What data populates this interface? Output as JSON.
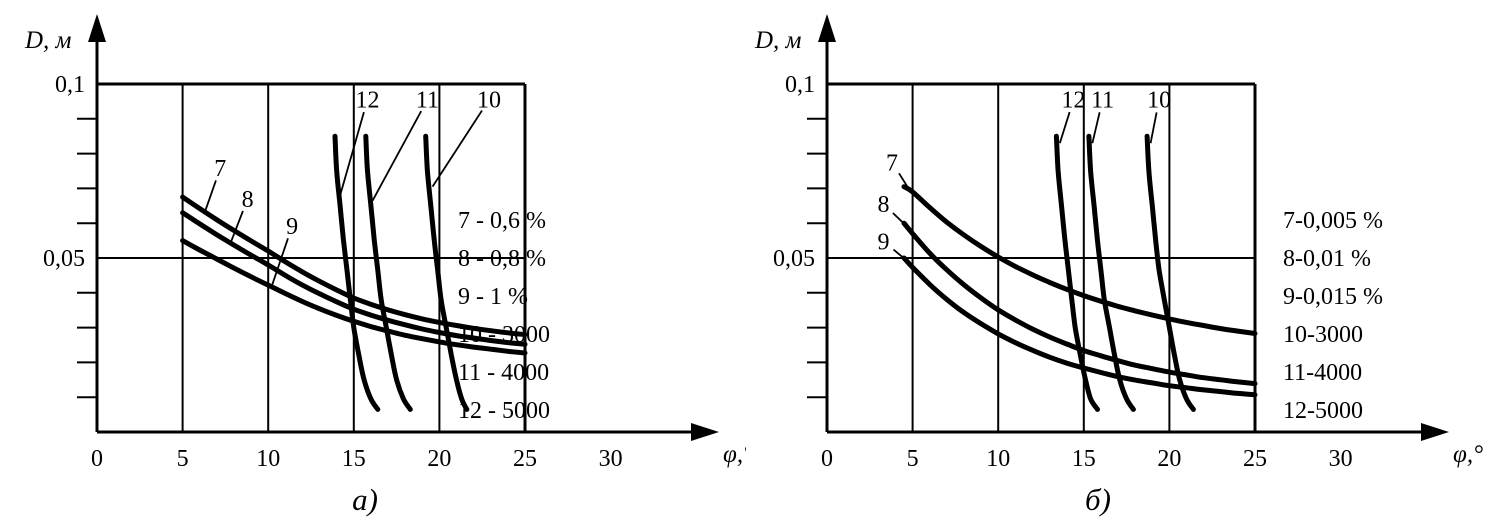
{
  "figure": {
    "background": "#ffffff",
    "ink": "#000000"
  },
  "chart_data": [
    {
      "id": "a",
      "type": "line",
      "caption": "а)",
      "xlabel": "φ,°",
      "ylabel": "D, м",
      "xlim": [
        0,
        30
      ],
      "ylim": [
        0,
        0.1
      ],
      "grid_x": [
        5,
        10,
        15,
        20
      ],
      "grid_y": [
        0.05
      ],
      "frame": {
        "x_max": 25,
        "y_max": 0.1
      },
      "y_minor_tick_step": 0.01,
      "x_ticks": [
        {
          "v": 0,
          "label": "0"
        },
        {
          "v": 5,
          "label": "5"
        },
        {
          "v": 10,
          "label": "10"
        },
        {
          "v": 15,
          "label": "15"
        },
        {
          "v": 20,
          "label": "20"
        },
        {
          "v": 25,
          "label": "25"
        },
        {
          "v": 30,
          "label": "30"
        }
      ],
      "y_ticks_labeled": [
        {
          "v": 0.1,
          "label": "0,1"
        },
        {
          "v": 0.05,
          "label": "0,05"
        }
      ],
      "legend": [
        "7 - 0,6 %",
        "8 - 0,8 %",
        "9 - 1 %",
        "10 - 3000",
        "11 - 4000",
        "12 - 5000"
      ],
      "legend_position": "right",
      "series": [
        {
          "name": "7",
          "points": [
            [
              5,
              0.0675
            ],
            [
              6,
              0.0642
            ],
            [
              7,
              0.061
            ],
            [
              8,
              0.0579
            ],
            [
              9,
              0.0549
            ],
            [
              10,
              0.052
            ],
            [
              11,
              0.0489
            ],
            [
              12,
              0.046
            ],
            [
              13,
              0.0433
            ],
            [
              14,
              0.0408
            ],
            [
              15,
              0.0385
            ],
            [
              16,
              0.0367
            ],
            [
              17,
              0.0351
            ],
            [
              18,
              0.0337
            ],
            [
              19,
              0.0325
            ],
            [
              20,
              0.0315
            ],
            [
              21,
              0.0306
            ],
            [
              22,
              0.0298
            ],
            [
              23,
              0.0291
            ],
            [
              24,
              0.0285
            ],
            [
              25,
              0.028
            ]
          ]
        },
        {
          "name": "8",
          "points": [
            [
              5,
              0.063
            ],
            [
              6,
              0.0598
            ],
            [
              7,
              0.0567
            ],
            [
              8,
              0.0537
            ],
            [
              9,
              0.0508
            ],
            [
              10,
              0.048
            ],
            [
              11,
              0.045
            ],
            [
              12,
              0.0422
            ],
            [
              13,
              0.0397
            ],
            [
              14,
              0.0374
            ],
            [
              15,
              0.0353
            ],
            [
              16,
              0.0336
            ],
            [
              17,
              0.0321
            ],
            [
              18,
              0.0308
            ],
            [
              19,
              0.0296
            ],
            [
              20,
              0.0286
            ],
            [
              21,
              0.0277
            ],
            [
              22,
              0.027
            ],
            [
              23,
              0.0263
            ],
            [
              24,
              0.0257
            ],
            [
              25,
              0.0252
            ]
          ]
        },
        {
          "name": "9",
          "points": [
            [
              5,
              0.055
            ],
            [
              6,
              0.0523
            ],
            [
              7,
              0.0497
            ],
            [
              8,
              0.0471
            ],
            [
              9,
              0.0446
            ],
            [
              10,
              0.0422
            ],
            [
              11,
              0.0398
            ],
            [
              12,
              0.0375
            ],
            [
              13,
              0.0354
            ],
            [
              14,
              0.0335
            ],
            [
              15,
              0.0318
            ],
            [
              16,
              0.0303
            ],
            [
              17,
              0.029
            ],
            [
              18,
              0.0278
            ],
            [
              19,
              0.0268
            ],
            [
              20,
              0.0259
            ],
            [
              21,
              0.0251
            ],
            [
              22,
              0.0244
            ],
            [
              23,
              0.0238
            ],
            [
              24,
              0.0232
            ],
            [
              25,
              0.0227
            ]
          ]
        },
        {
          "name": "12",
          "points": [
            [
              13.9,
              0.085
            ],
            [
              14.0,
              0.075
            ],
            [
              14.2,
              0.065
            ],
            [
              14.4,
              0.055
            ],
            [
              14.6,
              0.0465
            ],
            [
              14.8,
              0.038
            ],
            [
              15.0,
              0.03
            ],
            [
              15.3,
              0.022
            ],
            [
              15.6,
              0.015
            ],
            [
              16.0,
              0.0095
            ],
            [
              16.4,
              0.0065
            ]
          ]
        },
        {
          "name": "11",
          "points": [
            [
              15.7,
              0.085
            ],
            [
              15.8,
              0.075
            ],
            [
              16.0,
              0.065
            ],
            [
              16.2,
              0.055
            ],
            [
              16.4,
              0.0465
            ],
            [
              16.6,
              0.038
            ],
            [
              16.9,
              0.03
            ],
            [
              17.2,
              0.022
            ],
            [
              17.5,
              0.015
            ],
            [
              17.9,
              0.0095
            ],
            [
              18.3,
              0.0065
            ]
          ]
        },
        {
          "name": "10",
          "points": [
            [
              19.2,
              0.085
            ],
            [
              19.3,
              0.075
            ],
            [
              19.5,
              0.065
            ],
            [
              19.7,
              0.055
            ],
            [
              19.9,
              0.0465
            ],
            [
              20.1,
              0.038
            ],
            [
              20.4,
              0.03
            ],
            [
              20.7,
              0.022
            ],
            [
              21.0,
              0.015
            ],
            [
              21.3,
              0.0095
            ],
            [
              21.6,
              0.0065
            ]
          ]
        }
      ],
      "labels": [
        {
          "text": "7",
          "x": 7.2,
          "y": 0.0758,
          "tx": 6.3,
          "ty": 0.0632
        },
        {
          "text": "8",
          "x": 8.8,
          "y": 0.067,
          "tx": 7.8,
          "ty": 0.0543
        },
        {
          "text": "9",
          "x": 11.4,
          "y": 0.0592,
          "tx": 10.2,
          "ty": 0.0418
        },
        {
          "text": "12",
          "x": 15.8,
          "y": 0.0955,
          "tx": 14.2,
          "ty": 0.068
        },
        {
          "text": "11",
          "x": 19.3,
          "y": 0.0955,
          "tx": 16.1,
          "ty": 0.0665
        },
        {
          "text": "10",
          "x": 22.9,
          "y": 0.0955,
          "tx": 19.6,
          "ty": 0.0705
        }
      ]
    },
    {
      "id": "b",
      "type": "line",
      "caption": "б)",
      "xlabel": "φ,°",
      "ylabel": "D, м",
      "xlim": [
        0,
        30
      ],
      "ylim": [
        0,
        0.1
      ],
      "grid_x": [
        5,
        10,
        15,
        20
      ],
      "grid_y": [
        0.05
      ],
      "frame": {
        "x_max": 25,
        "y_max": 0.1
      },
      "y_minor_tick_step": 0.01,
      "x_ticks": [
        {
          "v": 0,
          "label": "0"
        },
        {
          "v": 5,
          "label": "5"
        },
        {
          "v": 10,
          "label": "10"
        },
        {
          "v": 15,
          "label": "15"
        },
        {
          "v": 20,
          "label": "20"
        },
        {
          "v": 25,
          "label": "25"
        },
        {
          "v": 30,
          "label": "30"
        }
      ],
      "y_ticks_labeled": [
        {
          "v": 0.1,
          "label": "0,1"
        },
        {
          "v": 0.05,
          "label": "0,05"
        }
      ],
      "legend": [
        "7-0,005 %",
        "8-0,01 %",
        "9-0,015 %",
        "10-3000",
        "11-4000",
        "12-5000"
      ],
      "legend_position": "right",
      "series": [
        {
          "name": "7",
          "points": [
            [
              4.5,
              0.0705
            ],
            [
              5,
              0.069
            ],
            [
              6,
              0.0645
            ],
            [
              7,
              0.0603
            ],
            [
              8,
              0.0566
            ],
            [
              9,
              0.0533
            ],
            [
              10,
              0.0503
            ],
            [
              11,
              0.0476
            ],
            [
              12,
              0.0452
            ],
            [
              13,
              0.043
            ],
            [
              14,
              0.041
            ],
            [
              15,
              0.0392
            ],
            [
              16,
              0.0376
            ],
            [
              17,
              0.0361
            ],
            [
              18,
              0.0348
            ],
            [
              19,
              0.0336
            ],
            [
              20,
              0.0325
            ],
            [
              21,
              0.0315
            ],
            [
              22,
              0.0306
            ],
            [
              23,
              0.0297
            ],
            [
              24,
              0.029
            ],
            [
              25,
              0.0283
            ]
          ]
        },
        {
          "name": "8",
          "points": [
            [
              4.5,
              0.06
            ],
            [
              5,
              0.057
            ],
            [
              6,
              0.0514
            ],
            [
              7,
              0.0466
            ],
            [
              8,
              0.0423
            ],
            [
              9,
              0.0385
            ],
            [
              10,
              0.0351
            ],
            [
              11,
              0.0322
            ],
            [
              12,
              0.0296
            ],
            [
              13,
              0.0273
            ],
            [
              14,
              0.0253
            ],
            [
              15,
              0.0234
            ],
            [
              16,
              0.0219
            ],
            [
              17,
              0.0205
            ],
            [
              18,
              0.0192
            ],
            [
              19,
              0.0182
            ],
            [
              20,
              0.0172
            ],
            [
              21,
              0.0164
            ],
            [
              22,
              0.0156
            ],
            [
              23,
              0.015
            ],
            [
              24,
              0.0144
            ],
            [
              25,
              0.0139
            ]
          ]
        },
        {
          "name": "9",
          "points": [
            [
              4.5,
              0.05
            ],
            [
              5,
              0.0473
            ],
            [
              6,
              0.0424
            ],
            [
              7,
              0.0381
            ],
            [
              8,
              0.0343
            ],
            [
              9,
              0.0311
            ],
            [
              10,
              0.0282
            ],
            [
              11,
              0.0257
            ],
            [
              12,
              0.0235
            ],
            [
              13,
              0.0215
            ],
            [
              14,
              0.0198
            ],
            [
              15,
              0.0184
            ],
            [
              16,
              0.0171
            ],
            [
              17,
              0.0159
            ],
            [
              18,
              0.0149
            ],
            [
              19,
              0.0141
            ],
            [
              20,
              0.0133
            ],
            [
              21,
              0.0127
            ],
            [
              22,
              0.0121
            ],
            [
              23,
              0.0116
            ],
            [
              24,
              0.0111
            ],
            [
              25,
              0.0107
            ]
          ]
        },
        {
          "name": "12",
          "points": [
            [
              13.4,
              0.085
            ],
            [
              13.5,
              0.075
            ],
            [
              13.7,
              0.065
            ],
            [
              13.9,
              0.055
            ],
            [
              14.1,
              0.0465
            ],
            [
              14.3,
              0.038
            ],
            [
              14.5,
              0.03
            ],
            [
              14.8,
              0.022
            ],
            [
              15.1,
              0.015
            ],
            [
              15.4,
              0.0095
            ],
            [
              15.8,
              0.0065
            ]
          ]
        },
        {
          "name": "11",
          "points": [
            [
              15.3,
              0.085
            ],
            [
              15.4,
              0.075
            ],
            [
              15.6,
              0.065
            ],
            [
              15.8,
              0.055
            ],
            [
              16.0,
              0.0465
            ],
            [
              16.2,
              0.038
            ],
            [
              16.5,
              0.03
            ],
            [
              16.8,
              0.022
            ],
            [
              17.1,
              0.015
            ],
            [
              17.5,
              0.0095
            ],
            [
              17.9,
              0.0065
            ]
          ]
        },
        {
          "name": "10",
          "points": [
            [
              18.7,
              0.085
            ],
            [
              18.8,
              0.075
            ],
            [
              19.0,
              0.065
            ],
            [
              19.2,
              0.055
            ],
            [
              19.4,
              0.0465
            ],
            [
              19.7,
              0.038
            ],
            [
              20.0,
              0.03
            ],
            [
              20.3,
              0.022
            ],
            [
              20.6,
              0.015
            ],
            [
              21.0,
              0.0095
            ],
            [
              21.4,
              0.0065
            ]
          ]
        }
      ],
      "labels": [
        {
          "text": "7",
          "x": 3.8,
          "y": 0.0775,
          "tx": 4.8,
          "ty": 0.0697
        },
        {
          "text": "8",
          "x": 3.3,
          "y": 0.0655,
          "tx": 4.6,
          "ty": 0.0594
        },
        {
          "text": "9",
          "x": 3.3,
          "y": 0.0548,
          "tx": 4.6,
          "ty": 0.0495
        },
        {
          "text": "12",
          "x": 14.4,
          "y": 0.0955,
          "tx": 13.6,
          "ty": 0.083
        },
        {
          "text": "11",
          "x": 16.1,
          "y": 0.0955,
          "tx": 15.5,
          "ty": 0.083
        },
        {
          "text": "10",
          "x": 19.4,
          "y": 0.0955,
          "tx": 18.9,
          "ty": 0.083
        }
      ]
    }
  ]
}
